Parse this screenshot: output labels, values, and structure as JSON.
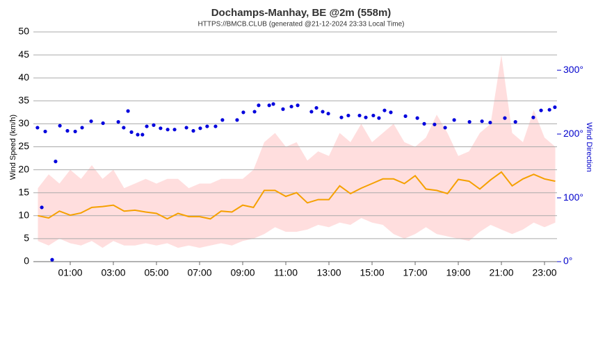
{
  "chart_data": {
    "type": "line",
    "title": "Dochamps-Manhay, BE @2m (558m)",
    "subtitle": "HTTPS://BMCB.CLUB (generated @21-12-2024 23:33 Local Time)",
    "y_label": "Wind Speed (km/h)",
    "y2_label": "Wind Direction",
    "xlim": [
      -0.71,
      23.58
    ],
    "xticks": [
      {
        "value": 1,
        "label": "01:00"
      },
      {
        "value": 3,
        "label": "03:00"
      },
      {
        "value": 5,
        "label": "05:00"
      },
      {
        "value": 7,
        "label": "07:00"
      },
      {
        "value": 9,
        "label": "09:00"
      },
      {
        "value": 11,
        "label": "11:00"
      },
      {
        "value": 13,
        "label": "13:00"
      },
      {
        "value": 15,
        "label": "15:00"
      },
      {
        "value": 17,
        "label": "17:00"
      },
      {
        "value": 19,
        "label": "19:00"
      },
      {
        "value": 21,
        "label": "21:00"
      },
      {
        "value": 23,
        "label": "23:00"
      }
    ],
    "ylim": [
      0,
      50
    ],
    "yticks": [
      0,
      5,
      10,
      15,
      20,
      25,
      30,
      35,
      40,
      45,
      50
    ],
    "y2lim": [
      0,
      360
    ],
    "y2ticks": [
      {
        "value": 0,
        "label": "0°"
      },
      {
        "value": 100,
        "label": "100°"
      },
      {
        "value": 200,
        "label": "200°"
      },
      {
        "value": 300,
        "label": "300°"
      }
    ],
    "grid": true,
    "x": [
      -0.5,
      0,
      0.5,
      1,
      1.5,
      2,
      2.5,
      3,
      3.5,
      4,
      4.5,
      5,
      5.5,
      6,
      6.5,
      7,
      7.5,
      8,
      8.5,
      9,
      9.5,
      10,
      10.5,
      11,
      11.5,
      12,
      12.5,
      13,
      13.5,
      14,
      14.5,
      15,
      15.5,
      16,
      16.5,
      17,
      17.5,
      18,
      18.5,
      19,
      19.5,
      20,
      20.5,
      21,
      21.5,
      22,
      22.5,
      23,
      23.5
    ],
    "series": [
      {
        "type": "band",
        "color": "#ffdede",
        "upper": [
          16,
          19,
          17,
          20,
          18,
          21,
          18,
          20,
          16,
          17,
          18,
          17,
          18,
          18,
          16,
          17,
          17,
          18,
          18,
          18,
          20,
          26,
          28,
          25,
          26,
          22,
          24,
          23,
          28,
          26,
          30,
          26,
          28,
          30,
          26,
          25,
          27,
          32,
          28,
          23,
          24,
          28,
          30,
          45,
          28,
          26,
          33,
          27,
          25
        ],
        "lower": [
          4.5,
          3.5,
          5,
          4,
          3.5,
          4.5,
          3,
          4.5,
          3.5,
          3.5,
          4,
          3.5,
          4,
          3,
          3.5,
          3,
          3.5,
          4,
          3.5,
          4.5,
          5,
          6,
          7.5,
          6.5,
          6.5,
          7,
          8,
          7.5,
          8.5,
          8,
          9.5,
          8.5,
          8,
          6,
          5,
          6,
          7.5,
          6,
          5.5,
          5,
          4.5,
          6.5,
          8,
          7,
          6,
          7,
          8.5,
          7.5,
          8.5
        ]
      },
      {
        "type": "line",
        "color": "#f5a000",
        "values": [
          10,
          9.5,
          11,
          10.1,
          10.6,
          11.8,
          12,
          12.3,
          11,
          11.2,
          10.8,
          10.5,
          9.3,
          10.5,
          9.8,
          9.8,
          9.3,
          11,
          10.8,
          12.3,
          11.8,
          15.5,
          15.5,
          14.2,
          15,
          12.8,
          13.5,
          13.5,
          16.5,
          14.8,
          16,
          17,
          18,
          18,
          17,
          18.7,
          15.8,
          15.5,
          14.8,
          17.9,
          17.5,
          15.8,
          17.8,
          19.5,
          16.5,
          18,
          19,
          18,
          17.5
        ]
      },
      {
        "type": "scatter",
        "axis": "y2",
        "color": "#0000dd",
        "x": [
          -0.52,
          -0.32,
          -0.16,
          0.16,
          0.32,
          0.52,
          0.87,
          1.23,
          1.55,
          1.97,
          2.52,
          3.23,
          3.48,
          3.68,
          3.84,
          4.13,
          4.35,
          4.55,
          4.87,
          5.19,
          5.52,
          5.84,
          6.39,
          6.71,
          7.03,
          7.35,
          7.74,
          8.06,
          8.74,
          9.03,
          9.55,
          9.74,
          10.23,
          10.42,
          10.87,
          11.26,
          11.55,
          12.19,
          12.42,
          12.71,
          12.97,
          13.58,
          13.9,
          14.42,
          14.71,
          15.06,
          15.32,
          15.58,
          15.87,
          16.55,
          17.1,
          17.42,
          17.9,
          18.39,
          18.81,
          19.52,
          20.1,
          20.48,
          21.16,
          21.65,
          22.48,
          22.84,
          23.23,
          23.48
        ],
        "values": [
          210,
          85,
          204,
          3,
          157,
          213,
          205,
          204,
          210,
          220,
          217,
          219,
          210,
          236,
          203,
          199,
          199,
          212,
          214,
          209,
          207,
          207,
          210,
          205,
          209,
          212,
          212,
          222,
          222,
          234,
          235,
          245,
          245,
          247,
          239,
          243,
          245,
          235,
          241,
          235,
          232,
          226,
          229,
          229,
          226,
          229,
          225,
          237,
          234,
          228,
          225,
          216,
          215,
          210,
          222,
          219,
          220,
          218,
          225,
          219,
          226,
          237,
          238,
          242
        ]
      }
    ]
  }
}
